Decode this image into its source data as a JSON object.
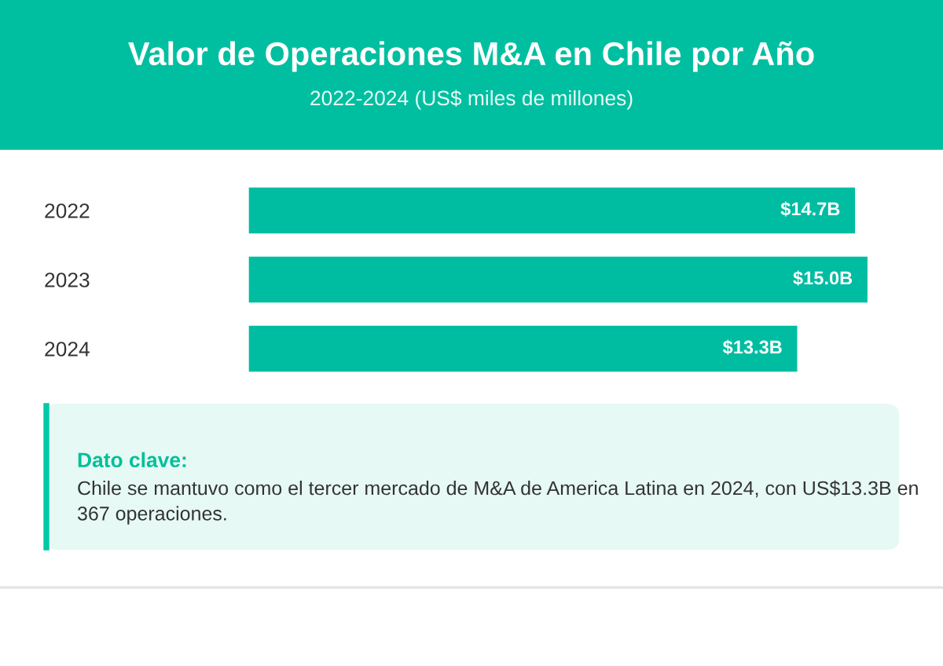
{
  "chart_data": {
    "type": "bar",
    "orientation": "horizontal",
    "title": "Valor de Operaciones M&A en Chile por Año",
    "subtitle": "2022-2024 (US$ miles de millones)",
    "categories": [
      "2022",
      "2023",
      "2024"
    ],
    "values": [
      14.7,
      15.0,
      13.3
    ],
    "value_labels": [
      "$14.7B",
      "$15.0B",
      "$13.3B"
    ],
    "color": "#00bda2",
    "tick_labels": "y",
    "grid": false,
    "legend": false,
    "annotations": [
      "Dato clave:",
      "Chile se mantuvo como el tercer mercado de M&A de America Latina en 2024, con US$13.3B en 367 operaciones."
    ]
  }
}
